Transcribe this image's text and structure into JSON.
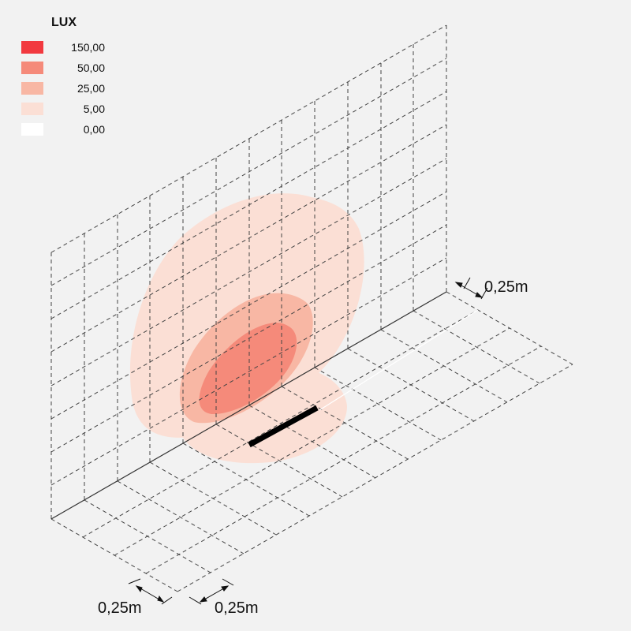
{
  "legend": {
    "title": "LUX",
    "items": [
      {
        "value": "150,00",
        "color": "#f2393f"
      },
      {
        "value": "50,00",
        "color": "#f58a7a"
      },
      {
        "value": "25,00",
        "color": "#f8b7a4"
      },
      {
        "value": "5,00",
        "color": "#fbdfd5"
      },
      {
        "value": "0,00",
        "color": "#ffffff"
      }
    ]
  },
  "dimensions": {
    "wall_grid_label": "0,25m",
    "floor_depth_label": "0,25m",
    "floor_width_label": "0,25m"
  },
  "colors": {
    "background": "#f2f2f2",
    "grid_line": "#444444",
    "fixture": "#000000"
  }
}
